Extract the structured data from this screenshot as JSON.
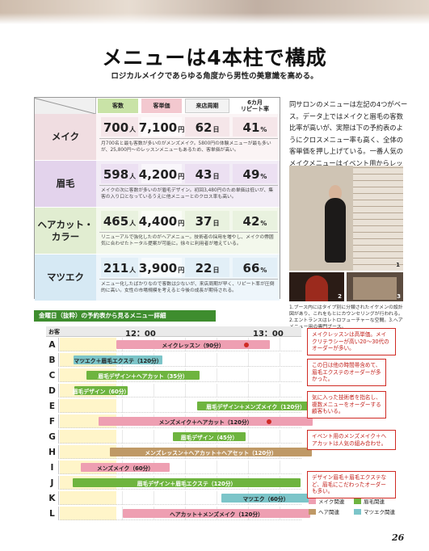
{
  "title": "メニューは4本柱で構成",
  "subtitle": "ロジカルメイクであらゆる角度から男性の美意識を高める。",
  "table": {
    "headers": [
      "客数",
      "客単価",
      "来店周期",
      "6カ月\nリピート率"
    ],
    "rows": [
      {
        "label": "メイク",
        "count": "700",
        "count_unit": "人",
        "price": "7,100",
        "price_unit": "円",
        "cycle": "62",
        "cycle_unit": "日",
        "repeat": "41",
        "repeat_unit": "%",
        "desc": "月700名と最も客数が多いのがメンズメイク。5800円の体験メニューが最も多いが、25,800円～のレッスンメニューもあるため、客単価が高い。"
      },
      {
        "label": "眉毛",
        "count": "598",
        "count_unit": "人",
        "price": "4,200",
        "price_unit": "円",
        "cycle": "43",
        "cycle_unit": "日",
        "repeat": "49",
        "repeat_unit": "%",
        "desc": "メイクの次に客数が多いのが眉毛デザイン。初回3,480円のため単価は低いが、集客の入り口となっているうえに他メニューとのクロス率も高い。"
      },
      {
        "label": "ヘアカット・カラー",
        "count": "465",
        "count_unit": "人",
        "price": "4,400",
        "price_unit": "円",
        "cycle": "37",
        "cycle_unit": "日",
        "repeat": "42",
        "repeat_unit": "%",
        "desc": "リニューアルで強化したのがヘアメニュー。技術者の採用を増やし、メイクの雰囲気に合わせたトータル提案が可能に。徐々に利用者が増えている。"
      },
      {
        "label": "マツエク",
        "count": "211",
        "count_unit": "人",
        "price": "3,900",
        "price_unit": "円",
        "cycle": "22",
        "cycle_unit": "日",
        "repeat": "66",
        "repeat_unit": "%",
        "desc": "メニュー化したばかりなので客数は少ないが、来店周期が早く、リピート率が圧倒的に高い。女性の市場規模を考えると今後の成長が期待される。"
      }
    ]
  },
  "body_text": "同サロンのメニューは左記の4つがベース。データ上ではメイクと眉毛の客数比率が高いが、実際は下の予約表のようにクロスメニュー率も高く、全体の客単価を押し上げている。一番人気のメイクメニューはイベント用からレッスンまで客層が幅広いのが特徴。",
  "photo_numbers": [
    "1",
    "2",
    "3"
  ],
  "caption": "1.ブース内にはタイプ別に分類されたイケメンの設計図があり、これをもとにカウンセリングが行われる。2.エントランスはレトロフューチャーな空間。3.ヘアメニュー用の専門ブース。",
  "schedule": {
    "title": "金曜日（抜粋）の予約表から見るメニュー詳細",
    "col_label": "お客",
    "times": [
      "12：00",
      "13：00"
    ],
    "rows": [
      {
        "letter": "A",
        "label": "メイクレッスン（90分）",
        "kind": "make"
      },
      {
        "letter": "B",
        "label": "マツエク＋眉毛エクステ（120分）",
        "kind": "lash"
      },
      {
        "letter": "C",
        "label": "眉毛デザイン＋ヘアカット（35分）",
        "kind": "brow"
      },
      {
        "letter": "D",
        "label": "眉毛デザイン（60分）",
        "kind": "brow"
      },
      {
        "letter": "E",
        "label": "眉毛デザイン＋メンズメイク（120分）",
        "kind": "brow"
      },
      {
        "letter": "F",
        "label": "メンズメイク＋ヘアカット（120分）",
        "kind": "make"
      },
      {
        "letter": "G",
        "label": "眉毛デザイン（45分）",
        "kind": "brow"
      },
      {
        "letter": "H",
        "label": "メンズレッスン＋ヘアカット＋ヘアセット（120分）",
        "kind": "hair"
      },
      {
        "letter": "I",
        "label": "メンズメイク（60分）",
        "kind": "make"
      },
      {
        "letter": "J",
        "label": "眉毛デザイン＋眉毛エクステ（120分）",
        "kind": "brow"
      },
      {
        "letter": "K",
        "label": "マツエク（60分）",
        "kind": "lash"
      },
      {
        "letter": "L",
        "label": "ヘアカット＋メンズメイク（120分）",
        "kind": "make"
      }
    ],
    "notes": [
      "メイクレッスンは高単価。メイクリテラシーが高い20～30代のオーダーが多い。",
      "この日は他の時間帯含めて、眉毛エクステのオーダーが多かった。",
      "気に入った技術者を指名し、複数メニューをオーダーする顧客もいる。",
      "イベント用のメンズメイク＋ヘアカットは人気の組み合わせ。",
      "デザイン眉毛＋眉毛エクステなど、眉毛にこだわったオーダーも多い。"
    ],
    "legend": [
      {
        "label": "メイク関連",
        "color": "#ee9fb2"
      },
      {
        "label": "眉毛関連",
        "color": "#6eb43f"
      },
      {
        "label": "ヘア関連",
        "color": "#bf9966"
      },
      {
        "label": "マツエク関連",
        "color": "#7cc5c9"
      }
    ]
  },
  "page_number": "26"
}
